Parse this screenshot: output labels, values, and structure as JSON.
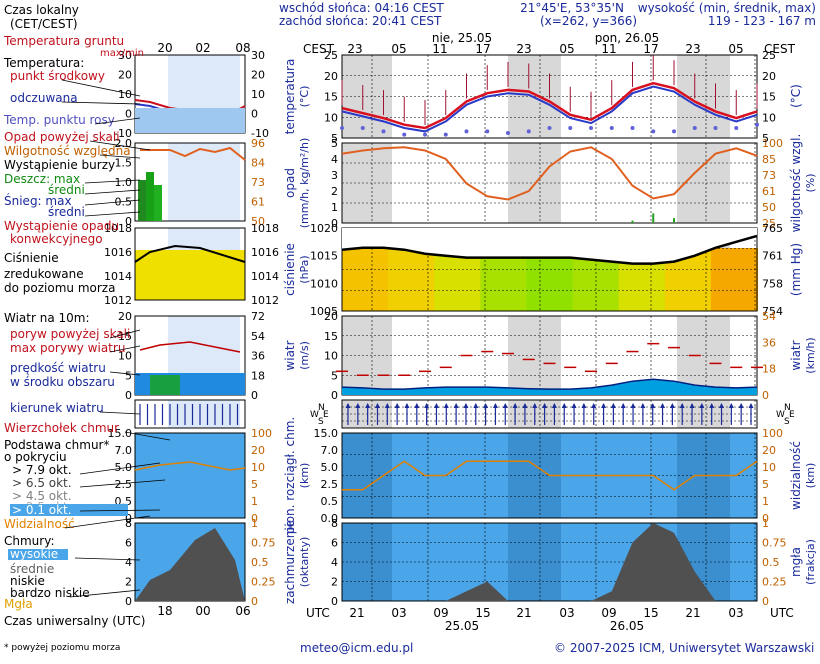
{
  "header": {
    "local_time_label": "Czas lokalny",
    "local_time_sub": "(CET/CEST)",
    "sunrise": "wschód słońca: 04:16 CEST",
    "sunset": "zachód słońca: 20:41 CEST",
    "coords": "21°45'E, 53°35'N",
    "grid": "(x=262, y=366)",
    "height_label": "wysokość (min, średnik, max)",
    "height_values": "119 - 123 - 167 m",
    "cest_left": "CEST",
    "cest_right": "CEST",
    "day1": "nie, 25.05",
    "day2": "pon, 26.05",
    "top_hours": [
      "23",
      "05",
      "11",
      "17",
      "23",
      "05",
      "11",
      "17",
      "23",
      "05"
    ],
    "legend_top_hours": [
      "20",
      "02",
      "08"
    ]
  },
  "footer": {
    "utc_left": "UTC",
    "utc_right": "UTC",
    "bottom_hours": [
      "21",
      "03",
      "09",
      "15",
      "21",
      "03",
      "09",
      "15",
      "21",
      "03"
    ],
    "date1": "25.05",
    "date2": "26.05",
    "legend_bottom_hours": [
      "18",
      "00",
      "06"
    ],
    "utc_label": "Czas uniwersalny (UTC)",
    "footnote": "* powyżej poziomu morza",
    "email": "meteo@icm.edu.pl",
    "copyright": "© 2007-2025 ICM, Uniwersytet Warszawski"
  },
  "legend": {
    "temp_ground": "Temperatura gruntu",
    "temp_ground_sub": "max/min",
    "temperature": "Temperatura:",
    "midpoint": "punkt środkowy",
    "max_min": "max/min",
    "perceived": "odczuwana",
    "perceived_sub": "max/min",
    "dewpoint": "Temp. punktu rosy",
    "precip_above": "Opad powyżej skali",
    "humidity": "Wilgotność względna",
    "storm": "Wystąpienie burzy",
    "rain": "Deszcz: max",
    "rain_avg": "średni",
    "snow": "Śnieg: max",
    "snow_avg": "średni",
    "conv": "Wystąpienie opadu",
    "conv2": "konwekcyjnego",
    "pressure1": "Ciśnienie",
    "pressure2": "zredukowane",
    "pressure3": "do poziomu morza",
    "wind_title": "Wiatr na 10m:",
    "gust_above": "poryw powyżej skali",
    "gust_max": "max porywy wiatru",
    "wind_speed1": "prędkość wiatru",
    "wind_speed2": "w środku obszaru",
    "wind_dir": "kierunek wiatru",
    "cloud_top": "Wierzchołek chmur",
    "cloud_base1": "Podstawa chmur*",
    "cloud_base2": "o pokryciu",
    "okt_79": "> 7.9 okt.",
    "okt_65": "> 6.5 okt.",
    "okt_45": "> 4.5 okt.",
    "okt_25": "> 2.5 okt.",
    "okt_01": "> 0.1 okt.",
    "visibility": "Widzialność",
    "clouds": "Chmury:",
    "high": "wysokie",
    "mid": "średnie",
    "low": "niskie",
    "very_low": "bardzo niskie",
    "fog": "Mgła"
  },
  "panels": {
    "temp": {
      "ylabel": "temperatura",
      "unit": "(°C)",
      "ticks": [
        "25",
        "20",
        "15",
        "10",
        "5"
      ]
    },
    "precip": {
      "ylabel": "opad",
      "unit": "(mm/h, kg/m²/h)",
      "ticks": [
        "5",
        "4",
        "3",
        "2",
        "1",
        "0"
      ],
      "rlabel": "wilgotność wzgl.",
      "runit": "(%)",
      "rticks": [
        "100",
        "85",
        "73",
        "61",
        "50",
        "25"
      ]
    },
    "pressure": {
      "ylabel": "ciśnienie",
      "unit": "(hPa)",
      "ticks": [
        "1020",
        "1015",
        "1010",
        "1005"
      ],
      "rlabel": "(mm Hg)",
      "rticks": [
        "765",
        "761",
        "758",
        "754"
      ]
    },
    "wind": {
      "ylabel": "wiatr",
      "unit": "(m/s)",
      "ticks": [
        "20",
        "15",
        "10",
        "5",
        "0"
      ],
      "rlabel": "wiatr",
      "runit": "(km/h)",
      "rticks": [
        "54",
        "36",
        "18",
        "0"
      ]
    },
    "dir": {
      "compass": [
        "N",
        "W",
        "E",
        "S"
      ]
    },
    "cloudbase": {
      "ylabel": "pion. rozciągł. chm.",
      "unit": "(km)",
      "ticks": [
        "15.0",
        "7.0",
        "5.0",
        "2.5",
        "0.5",
        "0.0"
      ],
      "rlabel": "widzialność",
      "runit": "(km)",
      "rticks": [
        "100",
        "20",
        "10",
        "5",
        "1",
        "0"
      ]
    },
    "cover": {
      "ylabel": "zachmurzenie",
      "unit": "(oktanty)",
      "ticks": [
        "8",
        "6",
        "4",
        "2",
        "0"
      ],
      "rlabel": "mgła",
      "runit": "(frakcja)",
      "rticks": [
        "1",
        "0.75",
        "0.5",
        "0.25",
        "0"
      ]
    }
  },
  "legend_ticks": {
    "temp_left": [
      "30",
      "20",
      "10",
      "0",
      "-10"
    ],
    "temp_right": [
      "30",
      "20",
      "10",
      "0",
      "-10"
    ],
    "precip_left": [
      "2.0",
      "1.5",
      "1.0",
      "0.5",
      "0"
    ],
    "precip_right": [
      "96",
      "84",
      "73",
      "61",
      "50"
    ],
    "press_left": [
      "1018",
      "1016",
      "1014",
      "1012"
    ],
    "press_right": [
      "1018",
      "1016",
      "1014",
      "1012"
    ],
    "wind_left": [
      "20",
      "15",
      "10",
      "5",
      "0"
    ],
    "wind_right": [
      "72",
      "54",
      "36",
      "18",
      "0"
    ],
    "cb_left": [
      "15.0",
      "7.0",
      "5.0",
      "2.5",
      "0.5",
      "0"
    ],
    "cb_right": [
      "100",
      "20",
      "10",
      "5",
      "1",
      "0"
    ],
    "cov_left": [
      "8",
      "6",
      "4",
      "2",
      "0"
    ],
    "cov_right": [
      "1",
      "0.75",
      "0.5",
      "0.25",
      "0"
    ]
  },
  "colors": {
    "temp_mid": "#d81020",
    "temp_perceived": "#2a3ac8",
    "dewpoint": "#6060d8",
    "humidity": "#e06020",
    "pressure_line": "#000000",
    "wind_mean": "#00a0e0",
    "gust": "#c00000",
    "night": "#d8d8d8",
    "sky": "#4aa6e8"
  },
  "chart_data": {
    "type": "line",
    "title": "",
    "x_hours_utc": [
      18,
      21,
      0,
      3,
      6,
      9,
      12,
      15,
      18,
      21,
      0,
      3,
      6,
      9,
      12,
      15,
      18,
      21,
      0,
      3,
      6
    ],
    "series": [
      {
        "name": "temperatura (°C)",
        "values": [
          11,
          9.5,
          8,
          6,
          5,
          8,
          13,
          15.5,
          16.5,
          16,
          13,
          9,
          7.5,
          11,
          16.5,
          18.5,
          17,
          13,
          10,
          8,
          10
        ]
      },
      {
        "name": "temp. punktu rosy (°C)",
        "values": [
          5,
          5,
          4,
          3,
          3,
          3,
          4,
          4,
          3.5,
          4,
          5,
          5,
          5,
          5,
          5,
          4,
          4,
          5,
          5,
          5,
          6
        ]
      },
      {
        "name": "wilgotność względna (%)",
        "values": [
          90,
          93,
          95,
          96,
          93,
          85,
          62,
          50,
          47,
          55,
          78,
          92,
          96,
          85,
          60,
          48,
          52,
          72,
          90,
          95,
          88
        ]
      },
      {
        "name": "ciśnienie (hPa)",
        "values": [
          1015.5,
          1016,
          1016,
          1015.5,
          1014.5,
          1014,
          1013.5,
          1013.5,
          1013.5,
          1013.5,
          1013.5,
          1013.5,
          1013,
          1012.5,
          1012,
          1012,
          1012.5,
          1014,
          1016,
          1017.5,
          1019
        ]
      },
      {
        "name": "prędkość wiatru (m/s)",
        "values": [
          2,
          1.8,
          1.5,
          1.5,
          1.8,
          2,
          2,
          2,
          1.8,
          1.6,
          1.5,
          1.5,
          1.8,
          2.5,
          3.5,
          4,
          3.5,
          2.5,
          2,
          1.8,
          2
        ]
      },
      {
        "name": "max porywy wiatru (m/s)",
        "values": [
          6,
          5,
          5,
          5,
          6,
          7,
          10,
          11,
          10.5,
          9,
          8,
          7,
          6,
          8,
          11,
          13,
          12,
          10,
          8,
          7,
          7
        ]
      },
      {
        "name": "zachmurzenie (oktanty)",
        "values": [
          0,
          0,
          0,
          0,
          0,
          0,
          1,
          2,
          0,
          0,
          0,
          0,
          0,
          1,
          6,
          8,
          7,
          3,
          0,
          0,
          0
        ]
      },
      {
        "name": "widzialność (km)",
        "values": [
          10,
          10,
          15,
          20,
          15,
          15,
          20,
          20,
          20,
          20,
          15,
          15,
          15,
          15,
          15,
          15,
          10,
          15,
          15,
          15,
          20
        ]
      },
      {
        "name": "opad (mm/h)",
        "values": [
          0,
          0,
          0,
          0,
          0,
          0,
          0,
          0,
          0,
          0,
          0,
          0,
          0,
          0,
          0.05,
          0.2,
          0.1,
          0,
          0,
          0,
          0
        ]
      }
    ],
    "ylim_temp": [
      2,
      27
    ],
    "ylim_precip": [
      0,
      5
    ],
    "ylim_pressure": [
      1000,
      1021
    ],
    "ylim_wind": [
      0,
      20
    ]
  }
}
